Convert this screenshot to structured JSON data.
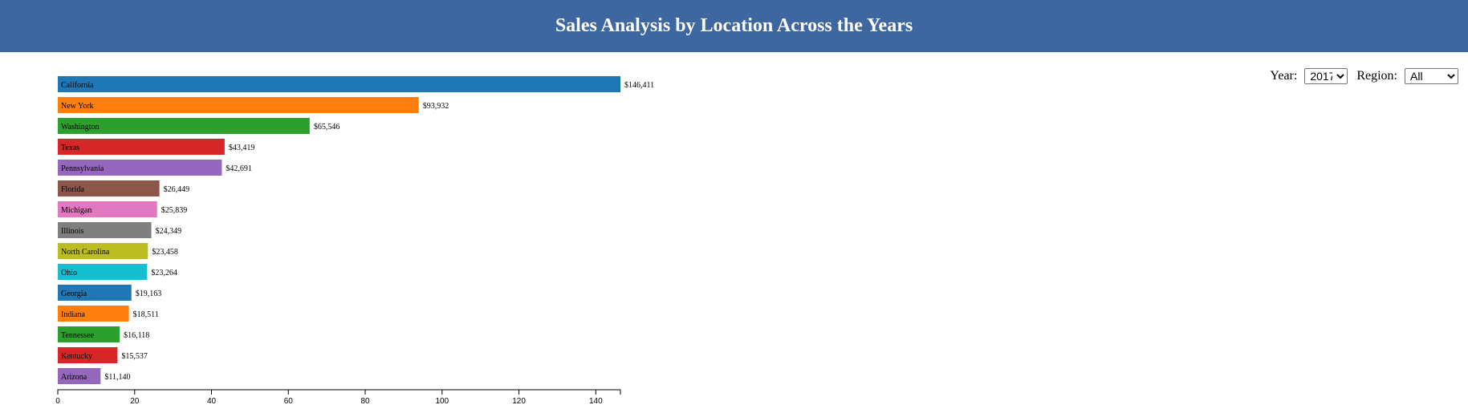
{
  "header": {
    "title": "Sales Analysis by Location Across the Years",
    "background": "#3e66a0"
  },
  "controls": {
    "year_label": "Year:",
    "year_selected": "2017",
    "region_label": "Region:",
    "region_selected": "All"
  },
  "chart_data": {
    "type": "bar",
    "orientation": "horizontal",
    "title": "",
    "xlabel": "",
    "ylabel": "",
    "xlim": [
      0,
      146.411
    ],
    "x_ticks": [
      0,
      20,
      40,
      60,
      80,
      100,
      120,
      140
    ],
    "grid": false,
    "categories": [
      "California",
      "New York",
      "Washington",
      "Texas",
      "Pennsylvania",
      "Florida",
      "Michigan",
      "Illinois",
      "North Carolina",
      "Ohio",
      "Georgia",
      "Indiana",
      "Tennessee",
      "Kentucky",
      "Arizona"
    ],
    "values": [
      146.411,
      93.932,
      65.546,
      43.419,
      42.691,
      26.449,
      25.839,
      24.349,
      23.458,
      23.264,
      19.163,
      18.511,
      16.118,
      15.537,
      11.14
    ],
    "value_labels": [
      "$146,411",
      "$93,932",
      "$65,546",
      "$43,419",
      "$42,691",
      "$26,449",
      "$25,839",
      "$24,349",
      "$23,458",
      "$23,264",
      "$19,163",
      "$18,511",
      "$16,118",
      "$15,537",
      "$11,140"
    ],
    "colors": [
      "#1f77b4",
      "#ff7f0e",
      "#2ca02c",
      "#d62728",
      "#9467bd",
      "#8c564b",
      "#e377c2",
      "#7f7f7f",
      "#bcbd22",
      "#17becf",
      "#1f77b4",
      "#ff7f0e",
      "#2ca02c",
      "#d62728",
      "#9467bd"
    ]
  }
}
